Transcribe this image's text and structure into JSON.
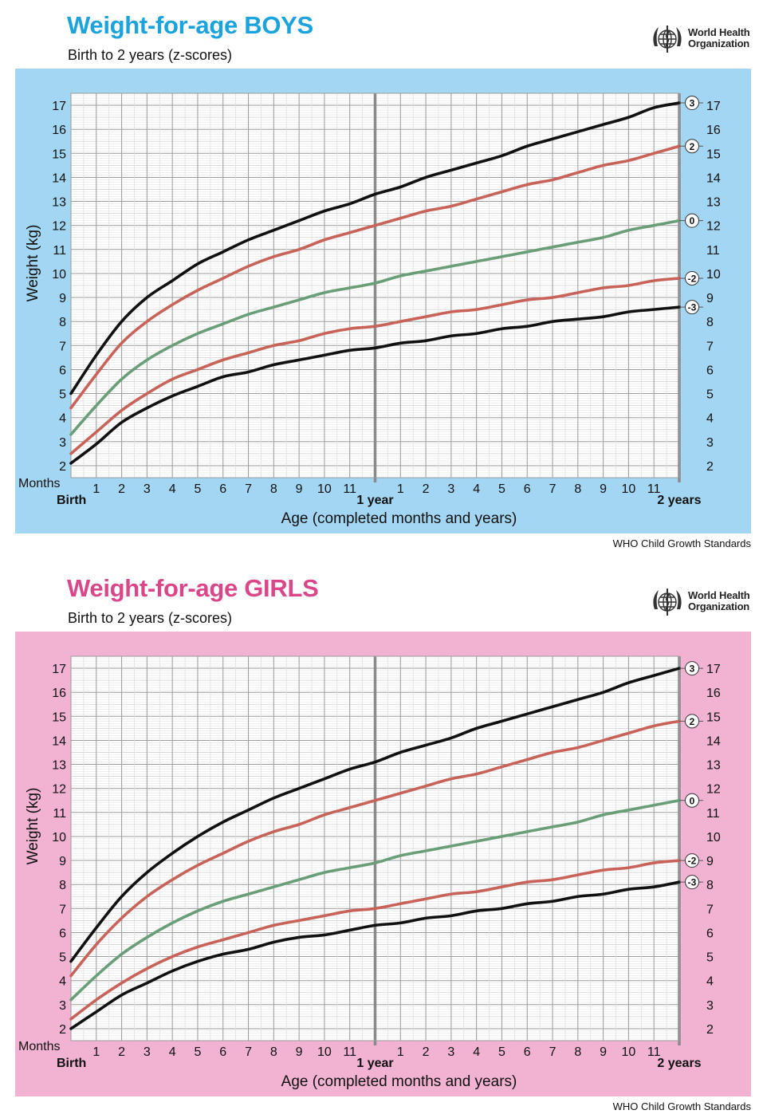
{
  "colors": {
    "boys_title": "#1aa3dc",
    "girls_title": "#d9478a",
    "boys_background": "#a3d6f2",
    "girls_background": "#f2b3d2",
    "z3_line": "#111111",
    "z2_line": "#c8635a",
    "z0_line": "#6a9e78"
  },
  "logo": {
    "line1": "World Health",
    "line2": "Organization",
    "icon": "who-emblem-icon"
  },
  "boys": {
    "title": "Weight-for-age BOYS",
    "subtitle": "Birth to 2 years (z-scores)",
    "footer": "WHO Child Growth Standards"
  },
  "girls": {
    "title": "Weight-for-age GIRLS",
    "subtitle": "Birth to 2 years (z-scores)",
    "footer": "WHO Child Growth Standards"
  },
  "chart_data": [
    {
      "type": "line",
      "title": "Weight-for-age BOYS",
      "subtitle": "Birth to 2 years (z-scores)",
      "xlabel": "Age (completed months and years)",
      "ylabel": "Weight (kg)",
      "months_label": "Months",
      "x_tick_labels": [
        "Birth",
        "1",
        "2",
        "3",
        "4",
        "5",
        "6",
        "7",
        "8",
        "9",
        "10",
        "11",
        "1 year",
        "1",
        "2",
        "3",
        "4",
        "5",
        "6",
        "7",
        "8",
        "9",
        "10",
        "11",
        "2 years"
      ],
      "xlim": [
        0,
        24
      ],
      "ylim": [
        1.5,
        17.5
      ],
      "y_ticks": [
        2,
        3,
        4,
        5,
        6,
        7,
        8,
        9,
        10,
        11,
        12,
        13,
        14,
        15,
        16,
        17
      ],
      "grid": true,
      "x": [
        0,
        1,
        2,
        3,
        4,
        5,
        6,
        7,
        8,
        9,
        10,
        11,
        12,
        13,
        14,
        15,
        16,
        17,
        18,
        19,
        20,
        21,
        22,
        23,
        24
      ],
      "series": [
        {
          "name": "3",
          "z": 3,
          "values": [
            5.0,
            6.6,
            8.0,
            9.0,
            9.7,
            10.4,
            10.9,
            11.4,
            11.8,
            12.2,
            12.6,
            12.9,
            13.3,
            13.6,
            14.0,
            14.3,
            14.6,
            14.9,
            15.3,
            15.6,
            15.9,
            16.2,
            16.5,
            16.9,
            17.1
          ]
        },
        {
          "name": "2",
          "z": 2,
          "values": [
            4.4,
            5.8,
            7.1,
            8.0,
            8.7,
            9.3,
            9.8,
            10.3,
            10.7,
            11.0,
            11.4,
            11.7,
            12.0,
            12.3,
            12.6,
            12.8,
            13.1,
            13.4,
            13.7,
            13.9,
            14.2,
            14.5,
            14.7,
            15.0,
            15.3
          ]
        },
        {
          "name": "0",
          "z": 0,
          "values": [
            3.3,
            4.5,
            5.6,
            6.4,
            7.0,
            7.5,
            7.9,
            8.3,
            8.6,
            8.9,
            9.2,
            9.4,
            9.6,
            9.9,
            10.1,
            10.3,
            10.5,
            10.7,
            10.9,
            11.1,
            11.3,
            11.5,
            11.8,
            12.0,
            12.2
          ]
        },
        {
          "name": "-2",
          "z": -2,
          "values": [
            2.5,
            3.4,
            4.3,
            5.0,
            5.6,
            6.0,
            6.4,
            6.7,
            7.0,
            7.2,
            7.5,
            7.7,
            7.8,
            8.0,
            8.2,
            8.4,
            8.5,
            8.7,
            8.9,
            9.0,
            9.2,
            9.4,
            9.5,
            9.7,
            9.8
          ]
        },
        {
          "name": "-3",
          "z": -3,
          "values": [
            2.1,
            2.9,
            3.8,
            4.4,
            4.9,
            5.3,
            5.7,
            5.9,
            6.2,
            6.4,
            6.6,
            6.8,
            6.9,
            7.1,
            7.2,
            7.4,
            7.5,
            7.7,
            7.8,
            8.0,
            8.1,
            8.2,
            8.4,
            8.5,
            8.6
          ]
        }
      ]
    },
    {
      "type": "line",
      "title": "Weight-for-age GIRLS",
      "subtitle": "Birth to 2 years (z-scores)",
      "xlabel": "Age (completed months and years)",
      "ylabel": "Weight (kg)",
      "months_label": "Months",
      "x_tick_labels": [
        "Birth",
        "1",
        "2",
        "3",
        "4",
        "5",
        "6",
        "7",
        "8",
        "9",
        "10",
        "11",
        "1 year",
        "1",
        "2",
        "3",
        "4",
        "5",
        "6",
        "7",
        "8",
        "9",
        "10",
        "11",
        "2 years"
      ],
      "xlim": [
        0,
        24
      ],
      "ylim": [
        1.5,
        17.5
      ],
      "y_ticks": [
        2,
        3,
        4,
        5,
        6,
        7,
        8,
        9,
        10,
        11,
        12,
        13,
        14,
        15,
        16,
        17
      ],
      "grid": true,
      "x": [
        0,
        1,
        2,
        3,
        4,
        5,
        6,
        7,
        8,
        9,
        10,
        11,
        12,
        13,
        14,
        15,
        16,
        17,
        18,
        19,
        20,
        21,
        22,
        23,
        24
      ],
      "series": [
        {
          "name": "3",
          "z": 3,
          "values": [
            4.8,
            6.2,
            7.5,
            8.5,
            9.3,
            10.0,
            10.6,
            11.1,
            11.6,
            12.0,
            12.4,
            12.8,
            13.1,
            13.5,
            13.8,
            14.1,
            14.5,
            14.8,
            15.1,
            15.4,
            15.7,
            16.0,
            16.4,
            16.7,
            17.0
          ]
        },
        {
          "name": "2",
          "z": 2,
          "values": [
            4.2,
            5.5,
            6.6,
            7.5,
            8.2,
            8.8,
            9.3,
            9.8,
            10.2,
            10.5,
            10.9,
            11.2,
            11.5,
            11.8,
            12.1,
            12.4,
            12.6,
            12.9,
            13.2,
            13.5,
            13.7,
            14.0,
            14.3,
            14.6,
            14.8
          ]
        },
        {
          "name": "0",
          "z": 0,
          "values": [
            3.2,
            4.2,
            5.1,
            5.8,
            6.4,
            6.9,
            7.3,
            7.6,
            7.9,
            8.2,
            8.5,
            8.7,
            8.9,
            9.2,
            9.4,
            9.6,
            9.8,
            10.0,
            10.2,
            10.4,
            10.6,
            10.9,
            11.1,
            11.3,
            11.5
          ]
        },
        {
          "name": "-2",
          "z": -2,
          "values": [
            2.4,
            3.2,
            3.9,
            4.5,
            5.0,
            5.4,
            5.7,
            6.0,
            6.3,
            6.5,
            6.7,
            6.9,
            7.0,
            7.2,
            7.4,
            7.6,
            7.7,
            7.9,
            8.1,
            8.2,
            8.4,
            8.6,
            8.7,
            8.9,
            9.0
          ]
        },
        {
          "name": "-3",
          "z": -3,
          "values": [
            2.0,
            2.7,
            3.4,
            3.9,
            4.4,
            4.8,
            5.1,
            5.3,
            5.6,
            5.8,
            5.9,
            6.1,
            6.3,
            6.4,
            6.6,
            6.7,
            6.9,
            7.0,
            7.2,
            7.3,
            7.5,
            7.6,
            7.8,
            7.9,
            8.1
          ]
        }
      ]
    }
  ]
}
